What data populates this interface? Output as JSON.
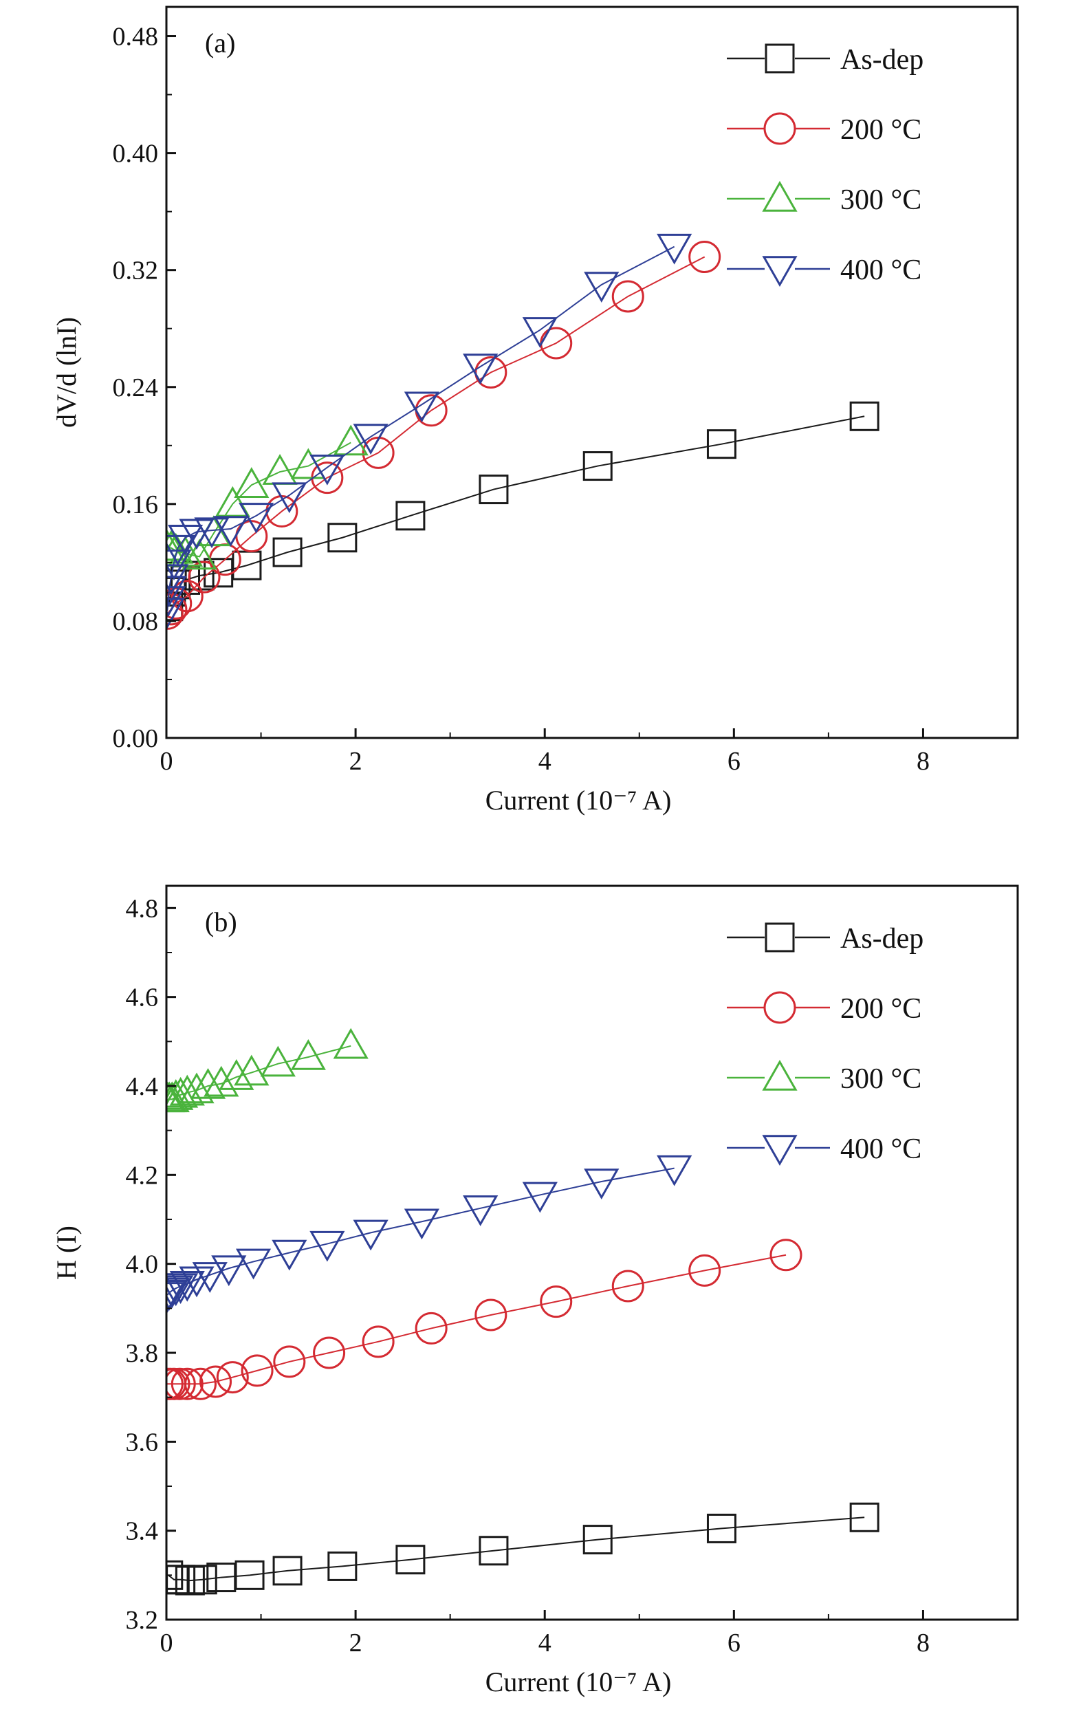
{
  "chart_data": [
    {
      "type": "line",
      "panel_label": "(a)",
      "xlabel": "Current (10⁻⁷ A)",
      "ylabel": "dV/d (lnI)",
      "xlim": [
        0,
        9
      ],
      "ylim": [
        0,
        0.5
      ],
      "xticks": [
        0,
        2,
        4,
        6,
        8
      ],
      "yticks": [
        0.0,
        0.08,
        0.16,
        0.24,
        0.32,
        0.4,
        0.48
      ],
      "ytick_decimals": 2,
      "legend_position": "top-right",
      "grid": false,
      "series": [
        {
          "name": "As-dep",
          "marker": "square",
          "color": "#1a1a1a",
          "points": [
            [
              0.02,
              0.09
            ],
            [
              0.05,
              0.1
            ],
            [
              0.1,
              0.105
            ],
            [
              0.2,
              0.108
            ],
            [
              0.35,
              0.111
            ],
            [
              0.55,
              0.113
            ],
            [
              0.85,
              0.118
            ],
            [
              1.28,
              0.127
            ],
            [
              1.86,
              0.137
            ],
            [
              2.58,
              0.152
            ],
            [
              3.46,
              0.17
            ],
            [
              4.56,
              0.186
            ],
            [
              5.87,
              0.201
            ],
            [
              7.38,
              0.22
            ]
          ]
        },
        {
          "name": "200 °C",
          "marker": "circle",
          "color": "#d42a32",
          "points": [
            [
              0.01,
              0.085
            ],
            [
              0.05,
              0.088
            ],
            [
              0.1,
              0.092
            ],
            [
              0.22,
              0.097
            ],
            [
              0.4,
              0.11
            ],
            [
              0.62,
              0.122
            ],
            [
              0.9,
              0.138
            ],
            [
              1.22,
              0.155
            ],
            [
              1.7,
              0.178
            ],
            [
              2.24,
              0.195
            ],
            [
              2.8,
              0.224
            ],
            [
              3.43,
              0.25
            ],
            [
              4.12,
              0.27
            ],
            [
              4.88,
              0.302
            ],
            [
              5.69,
              0.329
            ]
          ]
        },
        {
          "name": "300 °C",
          "marker": "triangle-up",
          "color": "#4ab33c",
          "points": [
            [
              0.01,
              0.13
            ],
            [
              0.05,
              0.13
            ],
            [
              0.1,
              0.128
            ],
            [
              0.2,
              0.126
            ],
            [
              0.35,
              0.124
            ],
            [
              0.5,
              0.14
            ],
            [
              0.7,
              0.16
            ],
            [
              0.9,
              0.173
            ],
            [
              1.2,
              0.182
            ],
            [
              1.5,
              0.186
            ],
            [
              1.95,
              0.202
            ]
          ]
        },
        {
          "name": "400 °C",
          "marker": "triangle-down",
          "color": "#2e3f96",
          "points": [
            [
              0.01,
              0.087
            ],
            [
              0.02,
              0.095
            ],
            [
              0.03,
              0.102
            ],
            [
              0.05,
              0.11
            ],
            [
              0.08,
              0.12
            ],
            [
              0.12,
              0.13
            ],
            [
              0.2,
              0.137
            ],
            [
              0.32,
              0.141
            ],
            [
              0.48,
              0.142
            ],
            [
              0.68,
              0.143
            ],
            [
              0.95,
              0.152
            ],
            [
              1.3,
              0.166
            ],
            [
              1.7,
              0.185
            ],
            [
              2.16,
              0.206
            ],
            [
              2.7,
              0.228
            ],
            [
              3.32,
              0.254
            ],
            [
              3.95,
              0.279
            ],
            [
              4.6,
              0.31
            ],
            [
              5.37,
              0.336
            ]
          ]
        }
      ]
    },
    {
      "type": "line",
      "panel_label": "(b)",
      "xlabel": "Current (10⁻⁷ A)",
      "ylabel": "H (I)",
      "xlim": [
        0,
        9
      ],
      "ylim": [
        3.2,
        4.85
      ],
      "xticks": [
        0,
        2,
        4,
        6,
        8
      ],
      "yticks": [
        3.2,
        3.4,
        3.6,
        3.8,
        4.0,
        4.2,
        4.4,
        4.6,
        4.8
      ],
      "ytick_decimals": 1,
      "legend_position": "top-right",
      "grid": false,
      "series": [
        {
          "name": "As-dep",
          "marker": "square",
          "color": "#1a1a1a",
          "points": [
            [
              0.02,
              3.3
            ],
            [
              0.08,
              3.29
            ],
            [
              0.15,
              3.29
            ],
            [
              0.25,
              3.288
            ],
            [
              0.38,
              3.29
            ],
            [
              0.58,
              3.295
            ],
            [
              0.88,
              3.3
            ],
            [
              1.28,
              3.31
            ],
            [
              1.86,
              3.32
            ],
            [
              2.58,
              3.335
            ],
            [
              3.46,
              3.355
            ],
            [
              4.56,
              3.38
            ],
            [
              5.87,
              3.405
            ],
            [
              7.38,
              3.43
            ]
          ]
        },
        {
          "name": "200 °C",
          "marker": "circle",
          "color": "#d42a32",
          "points": [
            [
              0.01,
              3.73
            ],
            [
              0.04,
              3.73
            ],
            [
              0.08,
              3.73
            ],
            [
              0.14,
              3.73
            ],
            [
              0.22,
              3.73
            ],
            [
              0.36,
              3.73
            ],
            [
              0.52,
              3.735
            ],
            [
              0.7,
              3.745
            ],
            [
              0.96,
              3.76
            ],
            [
              1.3,
              3.78
            ],
            [
              1.72,
              3.8
            ],
            [
              2.24,
              3.825
            ],
            [
              2.8,
              3.855
            ],
            [
              3.43,
              3.885
            ],
            [
              4.12,
              3.915
            ],
            [
              4.88,
              3.95
            ],
            [
              5.69,
              3.985
            ],
            [
              6.55,
              4.02
            ]
          ]
        },
        {
          "name": "300 °C",
          "marker": "triangle-up",
          "color": "#4ab33c",
          "points": [
            [
              0.01,
              4.37
            ],
            [
              0.03,
              4.37
            ],
            [
              0.06,
              4.37
            ],
            [
              0.1,
              4.375
            ],
            [
              0.15,
              4.38
            ],
            [
              0.22,
              4.385
            ],
            [
              0.32,
              4.39
            ],
            [
              0.44,
              4.4
            ],
            [
              0.58,
              4.405
            ],
            [
              0.74,
              4.42
            ],
            [
              0.9,
              4.43
            ],
            [
              1.18,
              4.45
            ],
            [
              1.5,
              4.465
            ],
            [
              1.95,
              4.49
            ]
          ]
        },
        {
          "name": "400 °C",
          "marker": "triangle-down",
          "color": "#2e3f96",
          "points": [
            [
              0.01,
              3.93
            ],
            [
              0.03,
              3.935
            ],
            [
              0.06,
              3.94
            ],
            [
              0.1,
              3.945
            ],
            [
              0.15,
              3.95
            ],
            [
              0.22,
              3.955
            ],
            [
              0.32,
              3.965
            ],
            [
              0.46,
              3.975
            ],
            [
              0.66,
              3.99
            ],
            [
              0.92,
              4.005
            ],
            [
              1.3,
              4.025
            ],
            [
              1.7,
              4.045
            ],
            [
              2.16,
              4.07
            ],
            [
              2.7,
              4.095
            ],
            [
              3.32,
              4.125
            ],
            [
              3.95,
              4.155
            ],
            [
              4.6,
              4.185
            ],
            [
              5.37,
              4.215
            ]
          ]
        }
      ]
    }
  ]
}
